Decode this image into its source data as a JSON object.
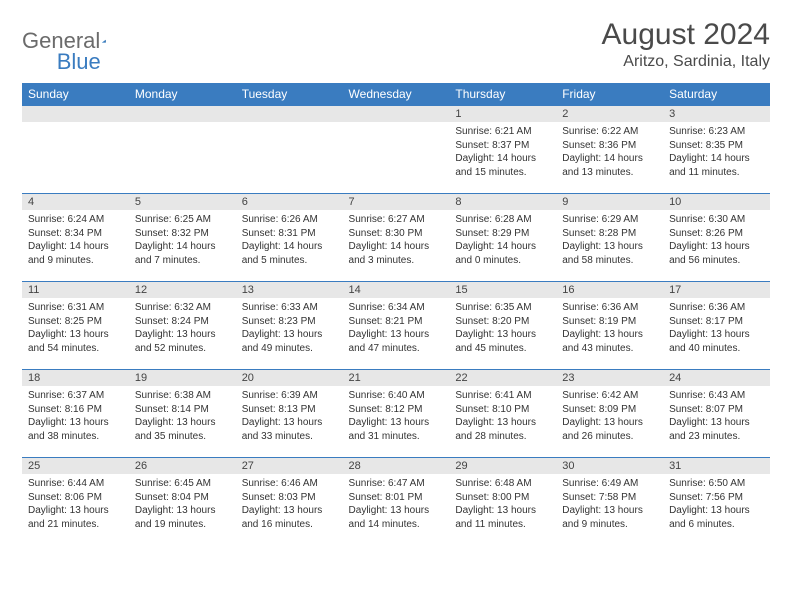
{
  "brand": {
    "part1": "General",
    "part2": "Blue"
  },
  "title": "August 2024",
  "location": "Aritzo, Sardinia, Italy",
  "colors": {
    "header_bg": "#3a7cc0",
    "header_text": "#ffffff",
    "daynum_bg": "#e7e7e7",
    "border": "#3a7cc0",
    "text": "#333333",
    "logo_gray": "#6b6b6b",
    "logo_blue": "#3a7cc0"
  },
  "day_names": [
    "Sunday",
    "Monday",
    "Tuesday",
    "Wednesday",
    "Thursday",
    "Friday",
    "Saturday"
  ],
  "weeks": [
    [
      {
        "empty": true
      },
      {
        "empty": true
      },
      {
        "empty": true
      },
      {
        "empty": true
      },
      {
        "n": "1",
        "sr": "Sunrise: 6:21 AM",
        "ss": "Sunset: 8:37 PM",
        "d1": "Daylight: 14 hours",
        "d2": "and 15 minutes."
      },
      {
        "n": "2",
        "sr": "Sunrise: 6:22 AM",
        "ss": "Sunset: 8:36 PM",
        "d1": "Daylight: 14 hours",
        "d2": "and 13 minutes."
      },
      {
        "n": "3",
        "sr": "Sunrise: 6:23 AM",
        "ss": "Sunset: 8:35 PM",
        "d1": "Daylight: 14 hours",
        "d2": "and 11 minutes."
      }
    ],
    [
      {
        "n": "4",
        "sr": "Sunrise: 6:24 AM",
        "ss": "Sunset: 8:34 PM",
        "d1": "Daylight: 14 hours",
        "d2": "and 9 minutes."
      },
      {
        "n": "5",
        "sr": "Sunrise: 6:25 AM",
        "ss": "Sunset: 8:32 PM",
        "d1": "Daylight: 14 hours",
        "d2": "and 7 minutes."
      },
      {
        "n": "6",
        "sr": "Sunrise: 6:26 AM",
        "ss": "Sunset: 8:31 PM",
        "d1": "Daylight: 14 hours",
        "d2": "and 5 minutes."
      },
      {
        "n": "7",
        "sr": "Sunrise: 6:27 AM",
        "ss": "Sunset: 8:30 PM",
        "d1": "Daylight: 14 hours",
        "d2": "and 3 minutes."
      },
      {
        "n": "8",
        "sr": "Sunrise: 6:28 AM",
        "ss": "Sunset: 8:29 PM",
        "d1": "Daylight: 14 hours",
        "d2": "and 0 minutes."
      },
      {
        "n": "9",
        "sr": "Sunrise: 6:29 AM",
        "ss": "Sunset: 8:28 PM",
        "d1": "Daylight: 13 hours",
        "d2": "and 58 minutes."
      },
      {
        "n": "10",
        "sr": "Sunrise: 6:30 AM",
        "ss": "Sunset: 8:26 PM",
        "d1": "Daylight: 13 hours",
        "d2": "and 56 minutes."
      }
    ],
    [
      {
        "n": "11",
        "sr": "Sunrise: 6:31 AM",
        "ss": "Sunset: 8:25 PM",
        "d1": "Daylight: 13 hours",
        "d2": "and 54 minutes."
      },
      {
        "n": "12",
        "sr": "Sunrise: 6:32 AM",
        "ss": "Sunset: 8:24 PM",
        "d1": "Daylight: 13 hours",
        "d2": "and 52 minutes."
      },
      {
        "n": "13",
        "sr": "Sunrise: 6:33 AM",
        "ss": "Sunset: 8:23 PM",
        "d1": "Daylight: 13 hours",
        "d2": "and 49 minutes."
      },
      {
        "n": "14",
        "sr": "Sunrise: 6:34 AM",
        "ss": "Sunset: 8:21 PM",
        "d1": "Daylight: 13 hours",
        "d2": "and 47 minutes."
      },
      {
        "n": "15",
        "sr": "Sunrise: 6:35 AM",
        "ss": "Sunset: 8:20 PM",
        "d1": "Daylight: 13 hours",
        "d2": "and 45 minutes."
      },
      {
        "n": "16",
        "sr": "Sunrise: 6:36 AM",
        "ss": "Sunset: 8:19 PM",
        "d1": "Daylight: 13 hours",
        "d2": "and 43 minutes."
      },
      {
        "n": "17",
        "sr": "Sunrise: 6:36 AM",
        "ss": "Sunset: 8:17 PM",
        "d1": "Daylight: 13 hours",
        "d2": "and 40 minutes."
      }
    ],
    [
      {
        "n": "18",
        "sr": "Sunrise: 6:37 AM",
        "ss": "Sunset: 8:16 PM",
        "d1": "Daylight: 13 hours",
        "d2": "and 38 minutes."
      },
      {
        "n": "19",
        "sr": "Sunrise: 6:38 AM",
        "ss": "Sunset: 8:14 PM",
        "d1": "Daylight: 13 hours",
        "d2": "and 35 minutes."
      },
      {
        "n": "20",
        "sr": "Sunrise: 6:39 AM",
        "ss": "Sunset: 8:13 PM",
        "d1": "Daylight: 13 hours",
        "d2": "and 33 minutes."
      },
      {
        "n": "21",
        "sr": "Sunrise: 6:40 AM",
        "ss": "Sunset: 8:12 PM",
        "d1": "Daylight: 13 hours",
        "d2": "and 31 minutes."
      },
      {
        "n": "22",
        "sr": "Sunrise: 6:41 AM",
        "ss": "Sunset: 8:10 PM",
        "d1": "Daylight: 13 hours",
        "d2": "and 28 minutes."
      },
      {
        "n": "23",
        "sr": "Sunrise: 6:42 AM",
        "ss": "Sunset: 8:09 PM",
        "d1": "Daylight: 13 hours",
        "d2": "and 26 minutes."
      },
      {
        "n": "24",
        "sr": "Sunrise: 6:43 AM",
        "ss": "Sunset: 8:07 PM",
        "d1": "Daylight: 13 hours",
        "d2": "and 23 minutes."
      }
    ],
    [
      {
        "n": "25",
        "sr": "Sunrise: 6:44 AM",
        "ss": "Sunset: 8:06 PM",
        "d1": "Daylight: 13 hours",
        "d2": "and 21 minutes."
      },
      {
        "n": "26",
        "sr": "Sunrise: 6:45 AM",
        "ss": "Sunset: 8:04 PM",
        "d1": "Daylight: 13 hours",
        "d2": "and 19 minutes."
      },
      {
        "n": "27",
        "sr": "Sunrise: 6:46 AM",
        "ss": "Sunset: 8:03 PM",
        "d1": "Daylight: 13 hours",
        "d2": "and 16 minutes."
      },
      {
        "n": "28",
        "sr": "Sunrise: 6:47 AM",
        "ss": "Sunset: 8:01 PM",
        "d1": "Daylight: 13 hours",
        "d2": "and 14 minutes."
      },
      {
        "n": "29",
        "sr": "Sunrise: 6:48 AM",
        "ss": "Sunset: 8:00 PM",
        "d1": "Daylight: 13 hours",
        "d2": "and 11 minutes."
      },
      {
        "n": "30",
        "sr": "Sunrise: 6:49 AM",
        "ss": "Sunset: 7:58 PM",
        "d1": "Daylight: 13 hours",
        "d2": "and 9 minutes."
      },
      {
        "n": "31",
        "sr": "Sunrise: 6:50 AM",
        "ss": "Sunset: 7:56 PM",
        "d1": "Daylight: 13 hours",
        "d2": "and 6 minutes."
      }
    ]
  ]
}
